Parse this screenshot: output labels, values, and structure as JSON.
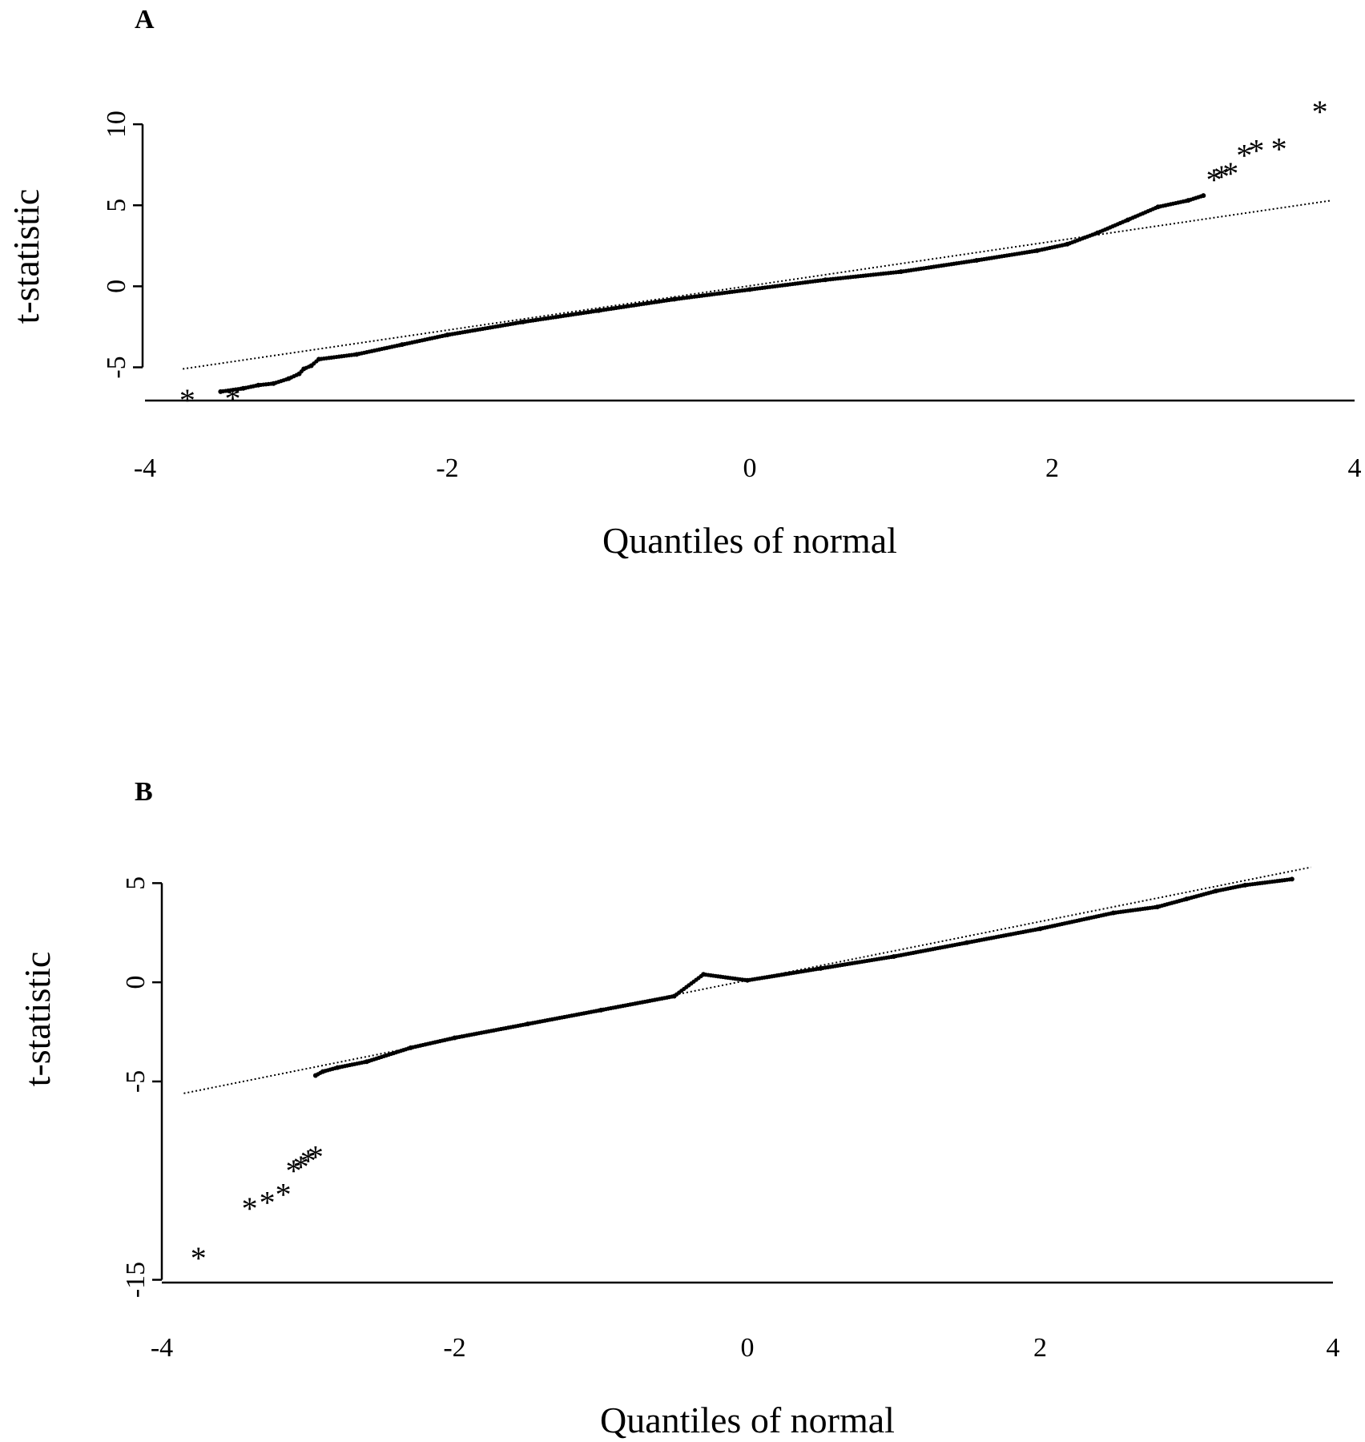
{
  "chart_data": [
    {
      "panel": "A",
      "type": "scatter",
      "xlabel": "Quantiles of normal",
      "ylabel": "t-statistic",
      "xlim": [
        -4,
        4
      ],
      "ylim": [
        -7.2,
        10.5
      ],
      "xticks": [
        -4,
        -2,
        0,
        2,
        4
      ],
      "yticks": [
        10,
        5,
        0,
        -5
      ],
      "reference_line": [
        [
          -3.75,
          -5.1
        ],
        [
          3.85,
          5.3
        ]
      ],
      "points": [
        [
          -3.5,
          -6.5
        ],
        [
          -3.35,
          -6.3
        ],
        [
          -3.25,
          -6.1
        ],
        [
          -3.15,
          -6.0
        ],
        [
          -3.05,
          -5.7
        ],
        [
          -2.98,
          -5.4
        ],
        [
          -2.95,
          -5.1
        ],
        [
          -2.9,
          -4.9
        ],
        [
          -2.85,
          -4.5
        ],
        [
          -2.6,
          -4.2
        ],
        [
          -2.3,
          -3.6
        ],
        [
          -2.0,
          -3.0
        ],
        [
          -1.5,
          -2.2
        ],
        [
          -1.0,
          -1.5
        ],
        [
          -0.5,
          -0.8
        ],
        [
          0.0,
          -0.2
        ],
        [
          0.5,
          0.4
        ],
        [
          1.0,
          0.9
        ],
        [
          1.5,
          1.6
        ],
        [
          1.9,
          2.2
        ],
        [
          2.1,
          2.6
        ],
        [
          2.3,
          3.3
        ],
        [
          2.5,
          4.1
        ],
        [
          2.7,
          4.9
        ],
        [
          2.9,
          5.3
        ],
        [
          3.0,
          5.6
        ]
      ],
      "outliers": [
        [
          -3.72,
          -6.9
        ],
        [
          -3.42,
          -6.8
        ],
        [
          3.07,
          6.7
        ],
        [
          3.12,
          6.9
        ],
        [
          3.18,
          7.1
        ],
        [
          3.27,
          8.2
        ],
        [
          3.35,
          8.5
        ],
        [
          3.5,
          8.6
        ],
        [
          3.77,
          10.9
        ]
      ]
    },
    {
      "panel": "B",
      "type": "scatter",
      "xlabel": "Quantiles of normal",
      "ylabel": "t-statistic",
      "xlim": [
        -4,
        4
      ],
      "ylim": [
        -15.1,
        5.5
      ],
      "xticks": [
        -4,
        -2,
        0,
        2,
        4
      ],
      "yticks": [
        5,
        0,
        -5,
        -15
      ],
      "reference_line": [
        [
          -3.85,
          -5.6
        ],
        [
          3.85,
          5.8
        ]
      ],
      "points": [
        [
          -2.95,
          -4.7
        ],
        [
          -2.9,
          -4.5
        ],
        [
          -2.8,
          -4.3
        ],
        [
          -2.6,
          -4.0
        ],
        [
          -2.3,
          -3.3
        ],
        [
          -2.0,
          -2.8
        ],
        [
          -1.5,
          -2.1
        ],
        [
          -1.0,
          -1.4
        ],
        [
          -0.5,
          -0.7
        ],
        [
          -0.3,
          0.4
        ],
        [
          0.0,
          0.1
        ],
        [
          0.5,
          0.7
        ],
        [
          1.0,
          1.3
        ],
        [
          1.5,
          2.0
        ],
        [
          2.0,
          2.7
        ],
        [
          2.5,
          3.5
        ],
        [
          2.8,
          3.8
        ],
        [
          3.0,
          4.2
        ],
        [
          3.2,
          4.6
        ],
        [
          3.4,
          4.9
        ],
        [
          3.72,
          5.2
        ]
      ],
      "outliers": [
        [
          -3.75,
          -13.8
        ],
        [
          -3.4,
          -11.3
        ],
        [
          -3.28,
          -11.0
        ],
        [
          -3.17,
          -10.6
        ],
        [
          -3.1,
          -9.4
        ],
        [
          -3.05,
          -9.2
        ],
        [
          -3.0,
          -8.9
        ],
        [
          -2.95,
          -8.7
        ]
      ]
    }
  ]
}
